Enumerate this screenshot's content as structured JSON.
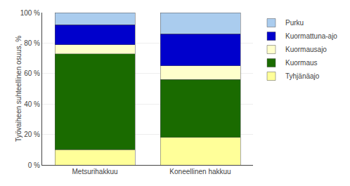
{
  "chart_data": {
    "type": "bar",
    "stacked": true,
    "categories": [
      "Metsurihakkuu",
      "Koneellinen hakkuu"
    ],
    "series": [
      {
        "name": "Tyhjänäajo",
        "values": [
          10,
          18
        ],
        "color": "#FFFF99"
      },
      {
        "name": "Kuormaus",
        "values": [
          63,
          38
        ],
        "color": "#1A6B00"
      },
      {
        "name": "Kuormausajo",
        "values": [
          6,
          9
        ],
        "color": "#FFFFCC"
      },
      {
        "name": "Kuormattuna-ajo",
        "values": [
          13,
          21
        ],
        "color": "#0000CC"
      },
      {
        "name": "Purku",
        "values": [
          8,
          14
        ],
        "color": "#AACCEE"
      }
    ],
    "ylabel": "Työvaiheen suhteellinen osuus, %",
    "ylim": [
      0,
      100
    ],
    "yticks": [
      {
        "value": 0,
        "label": "0 %"
      },
      {
        "value": 20,
        "label": "20 %"
      },
      {
        "value": 40,
        "label": "40 %"
      },
      {
        "value": 60,
        "label": "60 %"
      },
      {
        "value": 80,
        "label": "80 %"
      },
      {
        "value": 100,
        "label": "100 %"
      }
    ],
    "grid": true,
    "legend": "right"
  }
}
